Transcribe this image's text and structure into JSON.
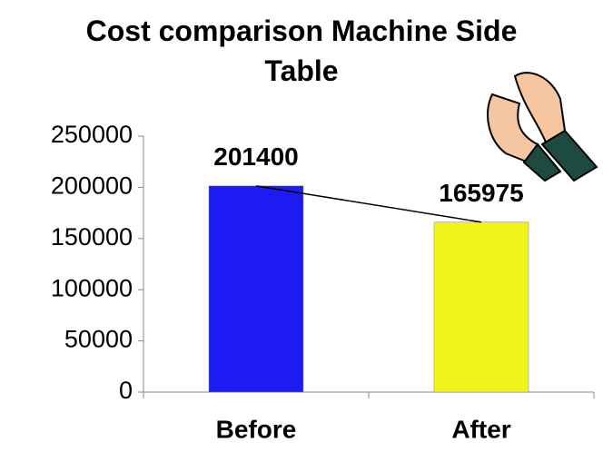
{
  "chart_data": {
    "type": "bar",
    "title": "Cost comparison Machine Side Table",
    "categories": [
      "Before",
      "After"
    ],
    "values": [
      201400,
      165975
    ],
    "colors": [
      "#1c1cf2",
      "#f2f21c"
    ],
    "ylim": [
      0,
      250000
    ],
    "yticks": [
      0,
      50000,
      100000,
      150000,
      200000,
      250000
    ]
  }
}
